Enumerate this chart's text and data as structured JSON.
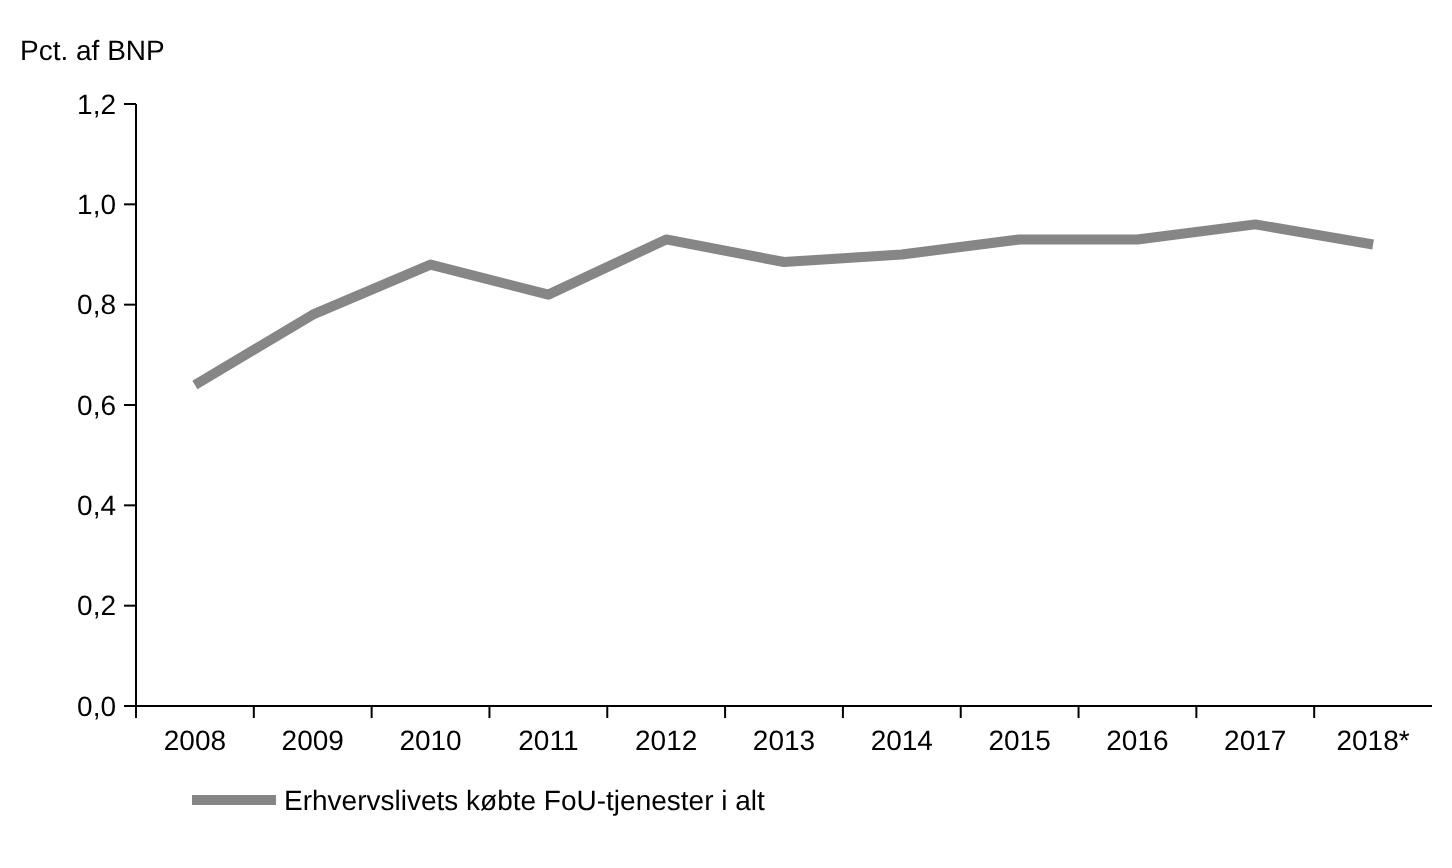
{
  "chart_data": {
    "type": "line",
    "ylabel": "Pct. af BNP",
    "categories": [
      "2008",
      "2009",
      "2010",
      "2011",
      "2012",
      "2013",
      "2014",
      "2015",
      "2016",
      "2017",
      "2018*"
    ],
    "series": [
      {
        "name": "Erhvervslivets købte FoU-tjenester i alt",
        "color": "#868686",
        "values": [
          0.64,
          0.78,
          0.88,
          0.82,
          0.93,
          0.885,
          0.9,
          0.93,
          0.93,
          0.96,
          0.92
        ]
      }
    ],
    "ylim": [
      0,
      1.2
    ],
    "yticks": [
      {
        "value": 0,
        "label": "0,0"
      },
      {
        "value": 0.2,
        "label": "0,2"
      },
      {
        "value": 0.4,
        "label": "0,4"
      },
      {
        "value": 0.6,
        "label": "0,6"
      },
      {
        "value": 0.8,
        "label": "0,8"
      },
      {
        "value": 1,
        "label": "1,0"
      },
      {
        "value": 1.2,
        "label": "1,2"
      }
    ],
    "grid": false,
    "legend": "bottom left",
    "marker": "none",
    "line_style": "solid"
  }
}
